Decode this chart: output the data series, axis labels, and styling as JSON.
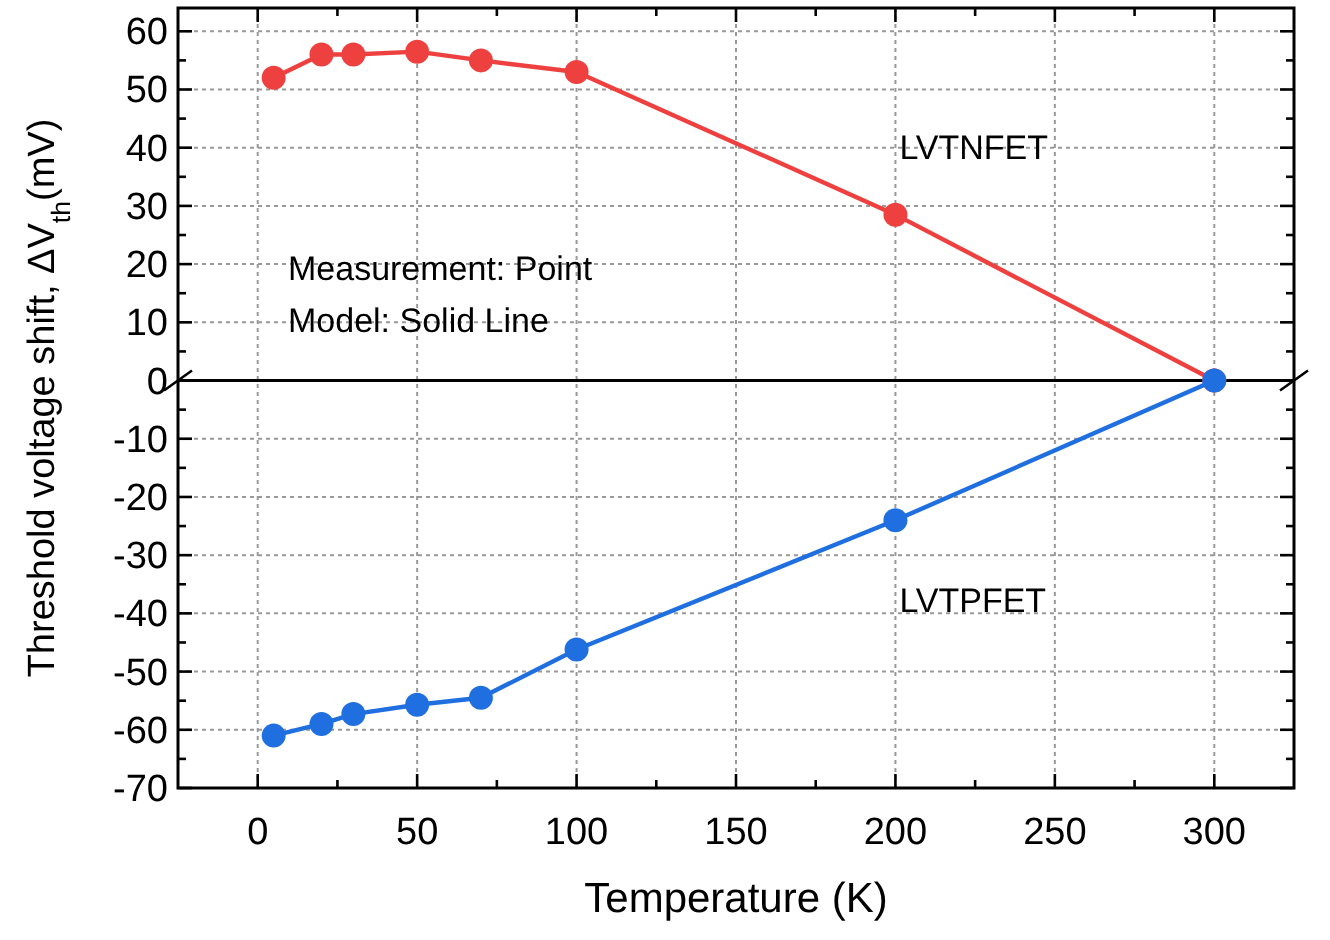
{
  "chart_data": {
    "type": "line",
    "xlabel": "Temperature (K)",
    "ylabel": "Threshold voltage shift, ΔV$_{th}$(mV)",
    "x": [
      5,
      20,
      30,
      50,
      70,
      100,
      200,
      300
    ],
    "series": [
      {
        "name": "LVTNFET",
        "color": "#ef4040",
        "values": [
          52,
          56,
          56,
          56.5,
          55,
          53,
          28.5,
          0
        ]
      },
      {
        "name": "LVTPFET",
        "color": "#1f6fe0",
        "values": [
          -61,
          -59,
          -57.3,
          -55.7,
          -54.5,
          -46.2,
          -24,
          0
        ]
      }
    ],
    "xlim": [
      -25,
      325
    ],
    "xticks": [
      0,
      {
        "value": 25,
        "label": null
      },
      50,
      {
        "value": 75,
        "label": null
      },
      100,
      {
        "value": 125,
        "label": null
      },
      150,
      {
        "value": 175,
        "label": null
      },
      200,
      {
        "value": 225,
        "label": null
      },
      250,
      {
        "value": 275,
        "label": null
      },
      300
    ],
    "ylim": [
      -70,
      64
    ],
    "yticks": [
      -70,
      {
        "value": -65,
        "label": null
      },
      -60,
      {
        "value": -55,
        "label": null
      },
      -50,
      {
        "value": -45,
        "label": null
      },
      -40,
      {
        "value": -35,
        "label": null
      },
      -30,
      {
        "value": -25,
        "label": null
      },
      -20,
      {
        "value": -15,
        "label": null
      },
      -10,
      {
        "value": -5,
        "label": null
      },
      0,
      {
        "value": 5,
        "label": null
      },
      10,
      {
        "value": 15,
        "label": null
      },
      20,
      {
        "value": 25,
        "label": null
      },
      30,
      {
        "value": 35,
        "label": null
      },
      40,
      {
        "value": 45,
        "label": null
      },
      50,
      {
        "value": 55,
        "label": null
      },
      60
    ],
    "ref_lines": [
      {
        "axis": "y",
        "value": 0,
        "color": "#000000",
        "line_style": "solid"
      }
    ],
    "annotations": [
      "Measurement: Point",
      "Model: Solid Line"
    ],
    "grid": true,
    "marker": "circle",
    "line_style": "solid"
  }
}
